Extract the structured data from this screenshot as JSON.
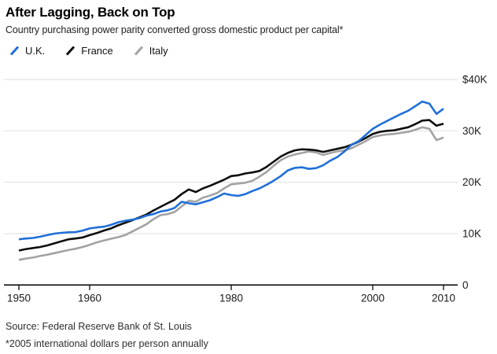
{
  "header": {
    "title": "After Lagging, Back on Top",
    "subtitle": "Country purchasing power parity converted gross domestic product per capital*"
  },
  "legend": {
    "items": [
      {
        "label": "U.K.",
        "color": "#1f6fd8"
      },
      {
        "label": "France",
        "color": "#0d0d0d"
      },
      {
        "label": "Italy",
        "color": "#a3a3a3"
      }
    ]
  },
  "chart_data": {
    "type": "line",
    "title": "After Lagging, Back on Top",
    "subtitle": "Country purchasing power parity converted gross domestic product per capital*",
    "unit": "2005 international dollars per person annually",
    "years": [
      1950,
      1951,
      1952,
      1953,
      1954,
      1955,
      1956,
      1957,
      1958,
      1959,
      1960,
      1961,
      1962,
      1963,
      1964,
      1965,
      1966,
      1967,
      1968,
      1969,
      1970,
      1971,
      1972,
      1973,
      1974,
      1975,
      1976,
      1977,
      1978,
      1979,
      1980,
      1981,
      1982,
      1983,
      1984,
      1985,
      1986,
      1987,
      1988,
      1989,
      1990,
      1991,
      1992,
      1993,
      1994,
      1995,
      1996,
      1997,
      1998,
      1999,
      2000,
      2001,
      2002,
      2003,
      2004,
      2005,
      2006,
      2007,
      2008,
      2009,
      2010
    ],
    "series": [
      {
        "name": "U.K.",
        "color": "#1f6fd8",
        "values": [
          8900,
          9050,
          9150,
          9400,
          9700,
          10000,
          10150,
          10250,
          10300,
          10600,
          11000,
          11200,
          11350,
          11700,
          12200,
          12500,
          12700,
          13000,
          13500,
          13800,
          14300,
          14550,
          15000,
          16200,
          15900,
          15700,
          16100,
          16500,
          17100,
          17800,
          17500,
          17350,
          17700,
          18300,
          18800,
          19500,
          20300,
          21200,
          22300,
          22800,
          22900,
          22600,
          22750,
          23300,
          24200,
          24900,
          26000,
          27300,
          28000,
          29200,
          30400,
          31200,
          31900,
          32600,
          33300,
          33900,
          34800,
          35700,
          35300,
          33300,
          34300
        ]
      },
      {
        "name": "France",
        "color": "#0d0d0d",
        "values": [
          6700,
          7000,
          7200,
          7400,
          7700,
          8100,
          8500,
          8900,
          9050,
          9250,
          9700,
          10100,
          10600,
          11000,
          11600,
          12100,
          12600,
          13150,
          13700,
          14500,
          15200,
          15900,
          16600,
          17700,
          18600,
          18100,
          18800,
          19300,
          19900,
          20500,
          21200,
          21350,
          21700,
          21900,
          22200,
          23000,
          24000,
          25000,
          25700,
          26200,
          26400,
          26350,
          26200,
          25900,
          26200,
          26500,
          26800,
          27300,
          27900,
          28600,
          29400,
          29800,
          30000,
          30100,
          30400,
          30700,
          31300,
          32000,
          32100,
          31000,
          31400
        ]
      },
      {
        "name": "Italy",
        "color": "#a3a3a3",
        "values": [
          4900,
          5150,
          5350,
          5650,
          5900,
          6200,
          6500,
          6800,
          7050,
          7400,
          7800,
          8300,
          8650,
          9000,
          9300,
          9700,
          10400,
          11100,
          11800,
          12800,
          13600,
          13800,
          14200,
          15300,
          16400,
          16200,
          17000,
          17400,
          17900,
          18800,
          19600,
          19750,
          19900,
          20300,
          21100,
          22000,
          23200,
          24300,
          25000,
          25400,
          25700,
          26000,
          25800,
          25300,
          25700,
          26000,
          26200,
          26600,
          27300,
          28000,
          28800,
          29100,
          29300,
          29400,
          29600,
          29800,
          30200,
          30700,
          30400,
          28200,
          28700
        ]
      }
    ],
    "axes": {
      "xlim": [
        1950,
        2010
      ],
      "ylim": [
        0,
        40000
      ],
      "x_ticks": [
        {
          "label": "1950",
          "value": 1950
        },
        {
          "label": "1960",
          "value": 1960
        },
        {
          "label": "1980",
          "value": 1980
        },
        {
          "label": "2000",
          "value": 2000
        },
        {
          "label": "2010",
          "value": 2010
        }
      ],
      "y_ticks": [
        {
          "label": "$40K",
          "value": 40000
        },
        {
          "label": "30K",
          "value": 30000
        },
        {
          "label": "20K",
          "value": 20000
        },
        {
          "label": "10K",
          "value": 10000
        },
        {
          "label": "0",
          "value": 0
        }
      ],
      "grid": "horizontal",
      "y_axis_side": "right",
      "legend_position": "top-left"
    }
  },
  "footer": {
    "source": "Source: Federal Reserve Bank of St. Louis",
    "footnote": "*2005 international dollars per person annually"
  }
}
